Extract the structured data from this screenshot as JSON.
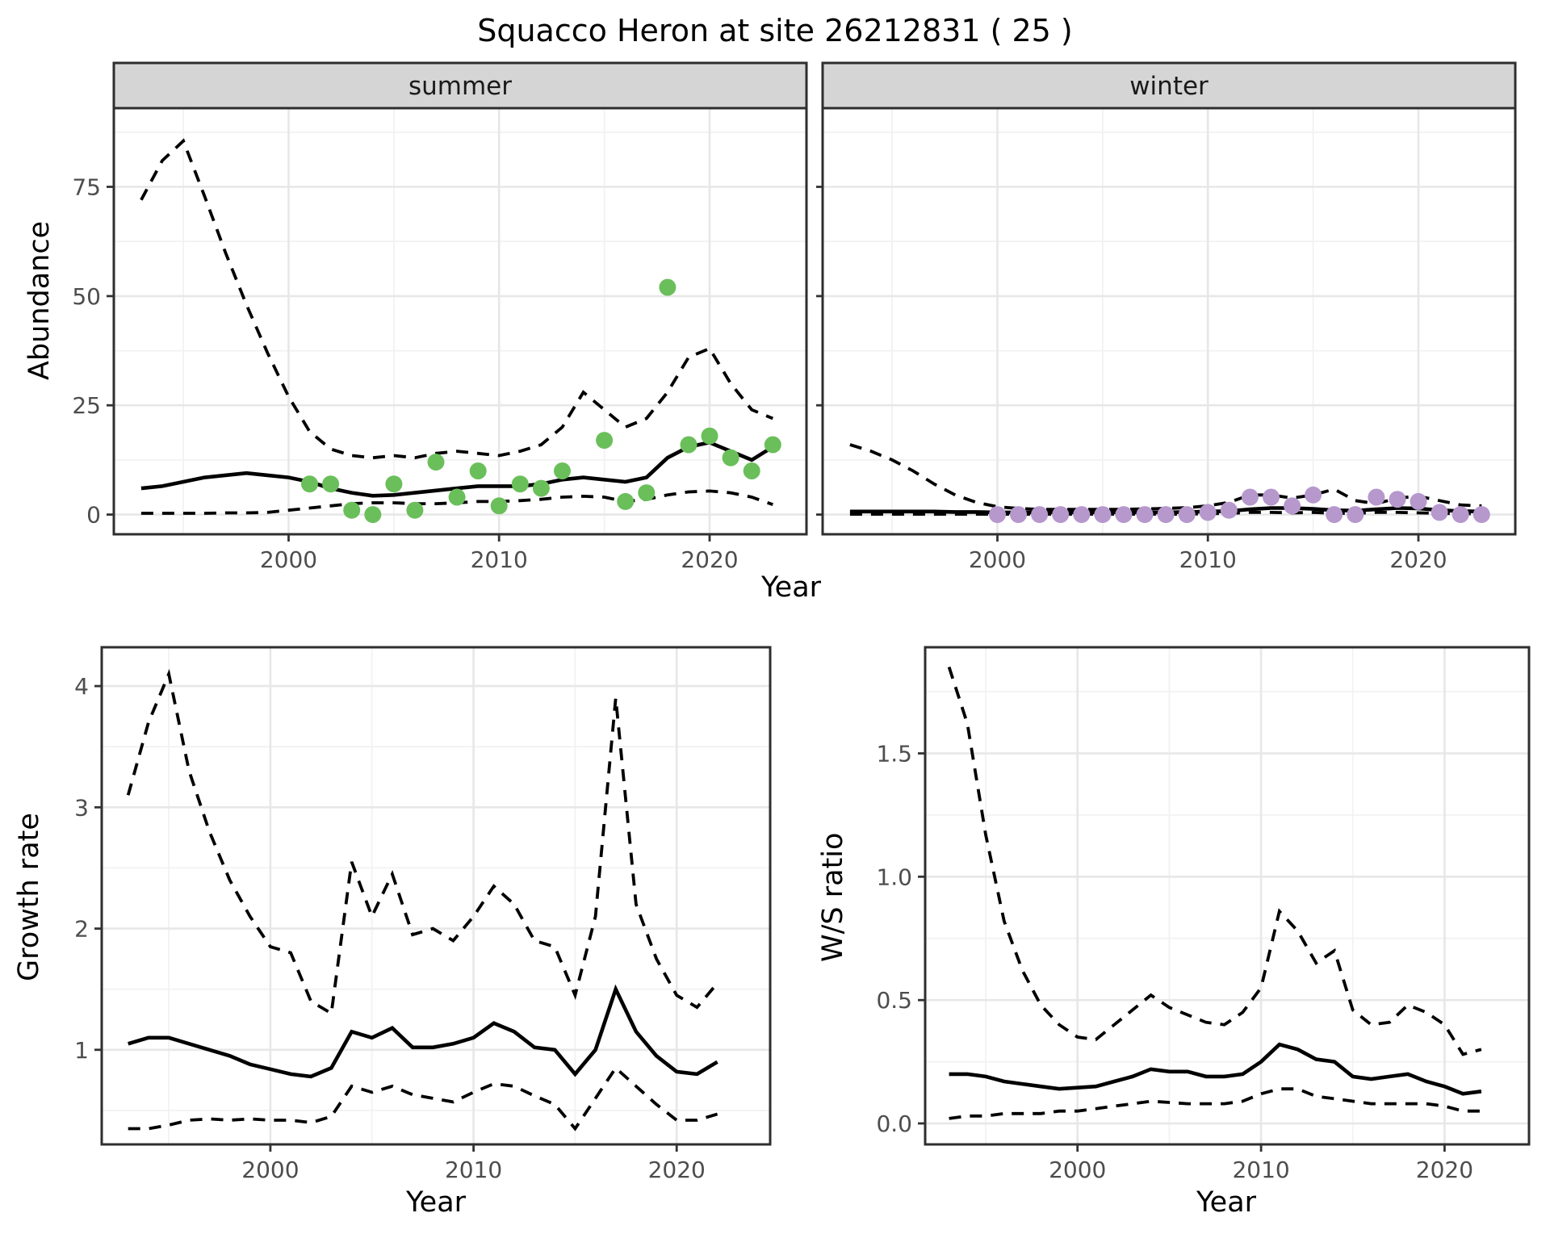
{
  "title": "Squacco Heron at site 26212831 ( 25 )",
  "colors": {
    "summer_point": "#6abf5a",
    "winter_point": "#b698cd",
    "line": "#000000",
    "strip_bg": "#d5d5d5",
    "strip_text": "#1a1a1a",
    "grid_major": "#e7e7e7",
    "grid_minor": "#f2f2f2",
    "panel_border": "#2e2e2e",
    "tick_mark": "#333333",
    "tick_label": "#4d4d4d"
  },
  "chart_data": [
    {
      "type": "line",
      "facet_label": "summer",
      "xlabel": "Year",
      "ylabel": "Abundance",
      "xlim": [
        1991.7,
        2024.6
      ],
      "ylim": [
        -4.5,
        93
      ],
      "xticks": [
        2000,
        2010,
        2020
      ],
      "xtick_labels": [
        "2000",
        "2010",
        "2020"
      ],
      "xminor": [
        1995,
        2005,
        2015
      ],
      "yticks": [
        0,
        25,
        50,
        75
      ],
      "ytick_labels": [
        "0",
        "25",
        "50",
        "75"
      ],
      "yminor": [
        12.5,
        37.5,
        62.5,
        87.5
      ],
      "grid": true,
      "legend": "none",
      "x": [
        1993,
        1994,
        1995,
        1996,
        1997,
        1998,
        1999,
        2000,
        2001,
        2002,
        2003,
        2004,
        2005,
        2006,
        2007,
        2008,
        2009,
        2010,
        2011,
        2012,
        2013,
        2014,
        2015,
        2016,
        2017,
        2018,
        2019,
        2020,
        2021,
        2022,
        2023
      ],
      "series": [
        {
          "name": "median",
          "style": "solid",
          "values": [
            6,
            6.5,
            7.5,
            8.5,
            9,
            9.5,
            9,
            8.5,
            7.5,
            6,
            5,
            4.3,
            4.5,
            5,
            5.5,
            6,
            6.5,
            6.5,
            6.5,
            7,
            8,
            8.5,
            8,
            7.5,
            8.5,
            13,
            15.5,
            16.5,
            14.5,
            12.5,
            15.5
          ]
        },
        {
          "name": "upper_ci",
          "style": "dashed",
          "values": [
            72,
            81,
            85.5,
            73,
            60,
            48,
            37,
            27,
            19,
            15,
            13.5,
            13,
            13.5,
            13,
            14,
            14.5,
            14,
            13.5,
            14.5,
            16,
            20,
            28,
            24,
            20,
            22,
            28,
            36,
            38,
            30,
            24,
            22
          ]
        },
        {
          "name": "lower_ci",
          "style": "dashed",
          "values": [
            0.3,
            0.3,
            0.3,
            0.3,
            0.4,
            0.4,
            0.5,
            1,
            1.5,
            2,
            2.5,
            2.7,
            2.7,
            2.5,
            2.5,
            2.7,
            3,
            3,
            3.2,
            3.5,
            4,
            4.2,
            4,
            3,
            3.5,
            4.5,
            5.2,
            5.4,
            5,
            4,
            2.3
          ]
        }
      ],
      "points": {
        "name": "observations",
        "color": "summer_point",
        "data": [
          [
            2001,
            7
          ],
          [
            2002,
            7
          ],
          [
            2003,
            1
          ],
          [
            2004,
            0
          ],
          [
            2005,
            7
          ],
          [
            2006,
            1
          ],
          [
            2007,
            12
          ],
          [
            2008,
            4
          ],
          [
            2009,
            10
          ],
          [
            2010,
            2
          ],
          [
            2011,
            7
          ],
          [
            2012,
            6
          ],
          [
            2013,
            10
          ],
          [
            2015,
            17
          ],
          [
            2016,
            3
          ],
          [
            2017,
            5
          ],
          [
            2018,
            52
          ],
          [
            2019,
            16
          ],
          [
            2020,
            18
          ],
          [
            2021,
            13
          ],
          [
            2022,
            10
          ],
          [
            2023,
            16
          ]
        ]
      }
    },
    {
      "type": "line",
      "facet_label": "winter",
      "xlabel": "Year",
      "ylabel": "",
      "xlim": [
        1991.7,
        2024.6
      ],
      "ylim": [
        -4.5,
        93
      ],
      "xticks": [
        2000,
        2010,
        2020
      ],
      "xtick_labels": [
        "2000",
        "2010",
        "2020"
      ],
      "xminor": [
        1995,
        2005,
        2015
      ],
      "yticks": [
        0,
        25,
        50,
        75
      ],
      "ytick_labels": [
        "0",
        "25",
        "50",
        "75"
      ],
      "yminor": [
        12.5,
        37.5,
        62.5,
        87.5
      ],
      "grid": true,
      "legend": "none",
      "x": [
        1993,
        1994,
        1995,
        1996,
        1997,
        1998,
        1999,
        2000,
        2001,
        2002,
        2003,
        2004,
        2005,
        2006,
        2007,
        2008,
        2009,
        2010,
        2011,
        2012,
        2013,
        2014,
        2015,
        2016,
        2017,
        2018,
        2019,
        2020,
        2021,
        2022,
        2023
      ],
      "series": [
        {
          "name": "median",
          "style": "solid",
          "values": [
            0.7,
            0.7,
            0.7,
            0.7,
            0.7,
            0.6,
            0.6,
            0.5,
            0.5,
            0.5,
            0.5,
            0.5,
            0.5,
            0.5,
            0.5,
            0.5,
            0.6,
            0.7,
            0.8,
            1.2,
            1.5,
            1.5,
            1.3,
            1.0,
            0.9,
            1.2,
            1.5,
            1.4,
            1.0,
            0.8,
            0.7
          ]
        },
        {
          "name": "upper_ci",
          "style": "dashed",
          "values": [
            16,
            14.5,
            12.5,
            10,
            7,
            4.5,
            2.8,
            1.8,
            1.4,
            1.2,
            1.2,
            1.2,
            1.2,
            1.2,
            1.3,
            1.4,
            1.6,
            2.0,
            2.8,
            4.5,
            4.5,
            3.8,
            4.5,
            5.8,
            3.2,
            2.5,
            3.8,
            4.2,
            3.2,
            2.2,
            2.0
          ]
        },
        {
          "name": "lower_ci",
          "style": "dashed",
          "values": [
            0.1,
            0.1,
            0.1,
            0.1,
            0.1,
            0.1,
            0.1,
            0.1,
            0.1,
            0.1,
            0.1,
            0.1,
            0.1,
            0.1,
            0.1,
            0.1,
            0.1,
            0.2,
            0.3,
            0.5,
            0.5,
            0.4,
            0.5,
            0.3,
            0.3,
            0.5,
            0.5,
            0.4,
            0.3,
            0.2,
            0.2
          ]
        }
      ],
      "points": {
        "name": "observations",
        "color": "winter_point",
        "data": [
          [
            2000,
            0
          ],
          [
            2001,
            0
          ],
          [
            2002,
            0
          ],
          [
            2003,
            0
          ],
          [
            2004,
            0
          ],
          [
            2005,
            0
          ],
          [
            2006,
            0
          ],
          [
            2007,
            0
          ],
          [
            2008,
            0
          ],
          [
            2009,
            0
          ],
          [
            2010,
            0.5
          ],
          [
            2011,
            1
          ],
          [
            2012,
            4
          ],
          [
            2013,
            4
          ],
          [
            2014,
            2
          ],
          [
            2015,
            4.5
          ],
          [
            2016,
            0
          ],
          [
            2017,
            0
          ],
          [
            2018,
            4
          ],
          [
            2019,
            3.5
          ],
          [
            2020,
            3
          ],
          [
            2021,
            0.5
          ],
          [
            2022,
            0
          ],
          [
            2023,
            0
          ]
        ]
      }
    },
    {
      "type": "line",
      "facet_label": "",
      "xlabel": "Year",
      "ylabel": "Growth rate",
      "xlim": [
        1991.7,
        2024.6
      ],
      "ylim": [
        0.22,
        4.32
      ],
      "xticks": [
        2000,
        2010,
        2020
      ],
      "xtick_labels": [
        "2000",
        "2010",
        "2020"
      ],
      "xminor": [
        1995,
        2005,
        2015
      ],
      "yticks": [
        1,
        2,
        3,
        4
      ],
      "ytick_labels": [
        "1",
        "2",
        "3",
        "4"
      ],
      "yminor": [
        0.5,
        1.5,
        2.5,
        3.5
      ],
      "grid": true,
      "legend": "none",
      "x": [
        1993,
        1994,
        1995,
        1996,
        1997,
        1998,
        1999,
        2000,
        2001,
        2002,
        2003,
        2004,
        2005,
        2006,
        2007,
        2008,
        2009,
        2010,
        2011,
        2012,
        2013,
        2014,
        2015,
        2016,
        2017,
        2018,
        2019,
        2020,
        2021,
        2022
      ],
      "series": [
        {
          "name": "median",
          "style": "solid",
          "values": [
            1.05,
            1.1,
            1.1,
            1.05,
            1.0,
            0.95,
            0.88,
            0.84,
            0.8,
            0.78,
            0.85,
            1.15,
            1.1,
            1.18,
            1.02,
            1.02,
            1.05,
            1.1,
            1.22,
            1.15,
            1.02,
            1.0,
            0.8,
            1.0,
            1.5,
            1.15,
            0.95,
            0.82,
            0.8,
            0.9
          ]
        },
        {
          "name": "upper_ci",
          "style": "dashed",
          "values": [
            3.1,
            3.7,
            4.1,
            3.3,
            2.8,
            2.4,
            2.1,
            1.85,
            1.8,
            1.4,
            1.3,
            2.55,
            2.1,
            2.45,
            1.95,
            2.0,
            1.9,
            2.1,
            2.35,
            2.2,
            1.9,
            1.85,
            1.45,
            2.1,
            3.9,
            2.2,
            1.75,
            1.45,
            1.35,
            1.55
          ]
        },
        {
          "name": "lower_ci",
          "style": "dashed",
          "values": [
            0.35,
            0.35,
            0.38,
            0.42,
            0.43,
            0.42,
            0.43,
            0.42,
            0.42,
            0.4,
            0.45,
            0.7,
            0.65,
            0.7,
            0.63,
            0.6,
            0.57,
            0.65,
            0.72,
            0.7,
            0.62,
            0.55,
            0.35,
            0.6,
            0.85,
            0.7,
            0.55,
            0.42,
            0.42,
            0.47
          ]
        }
      ],
      "points": {
        "name": "observations",
        "color": "line",
        "data": []
      }
    },
    {
      "type": "line",
      "facet_label": "",
      "xlabel": "Year",
      "ylabel": "W/S ratio",
      "xlim": [
        1991.7,
        2024.6
      ],
      "ylim": [
        -0.085,
        1.93
      ],
      "xticks": [
        2000,
        2010,
        2020
      ],
      "xtick_labels": [
        "2000",
        "2010",
        "2020"
      ],
      "xminor": [
        1995,
        2005,
        2015
      ],
      "yticks": [
        0,
        0.5,
        1.0,
        1.5
      ],
      "ytick_labels": [
        "0.0",
        "0.5",
        "1.0",
        "1.5"
      ],
      "yminor": [
        0.25,
        0.75,
        1.25,
        1.75
      ],
      "grid": true,
      "legend": "none",
      "x": [
        1993,
        1994,
        1995,
        1996,
        1997,
        1998,
        1999,
        2000,
        2001,
        2002,
        2003,
        2004,
        2005,
        2006,
        2007,
        2008,
        2009,
        2010,
        2011,
        2012,
        2013,
        2014,
        2015,
        2016,
        2017,
        2018,
        2019,
        2020,
        2021,
        2022
      ],
      "series": [
        {
          "name": "median",
          "style": "solid",
          "values": [
            0.2,
            0.2,
            0.19,
            0.17,
            0.16,
            0.15,
            0.14,
            0.145,
            0.15,
            0.17,
            0.19,
            0.22,
            0.21,
            0.21,
            0.19,
            0.19,
            0.2,
            0.25,
            0.32,
            0.3,
            0.26,
            0.25,
            0.19,
            0.18,
            0.19,
            0.2,
            0.17,
            0.15,
            0.12,
            0.13
          ]
        },
        {
          "name": "upper_ci",
          "style": "dashed",
          "values": [
            1.85,
            1.62,
            1.17,
            0.82,
            0.62,
            0.48,
            0.4,
            0.35,
            0.34,
            0.4,
            0.46,
            0.52,
            0.47,
            0.44,
            0.41,
            0.4,
            0.45,
            0.55,
            0.86,
            0.78,
            0.65,
            0.7,
            0.46,
            0.4,
            0.41,
            0.48,
            0.45,
            0.4,
            0.28,
            0.3
          ]
        },
        {
          "name": "lower_ci",
          "style": "dashed",
          "values": [
            0.02,
            0.03,
            0.03,
            0.04,
            0.04,
            0.04,
            0.05,
            0.05,
            0.06,
            0.07,
            0.08,
            0.09,
            0.085,
            0.08,
            0.08,
            0.08,
            0.09,
            0.12,
            0.14,
            0.14,
            0.11,
            0.1,
            0.09,
            0.08,
            0.08,
            0.08,
            0.08,
            0.07,
            0.05,
            0.05
          ]
        }
      ],
      "points": {
        "name": "observations",
        "color": "line",
        "data": []
      }
    }
  ]
}
